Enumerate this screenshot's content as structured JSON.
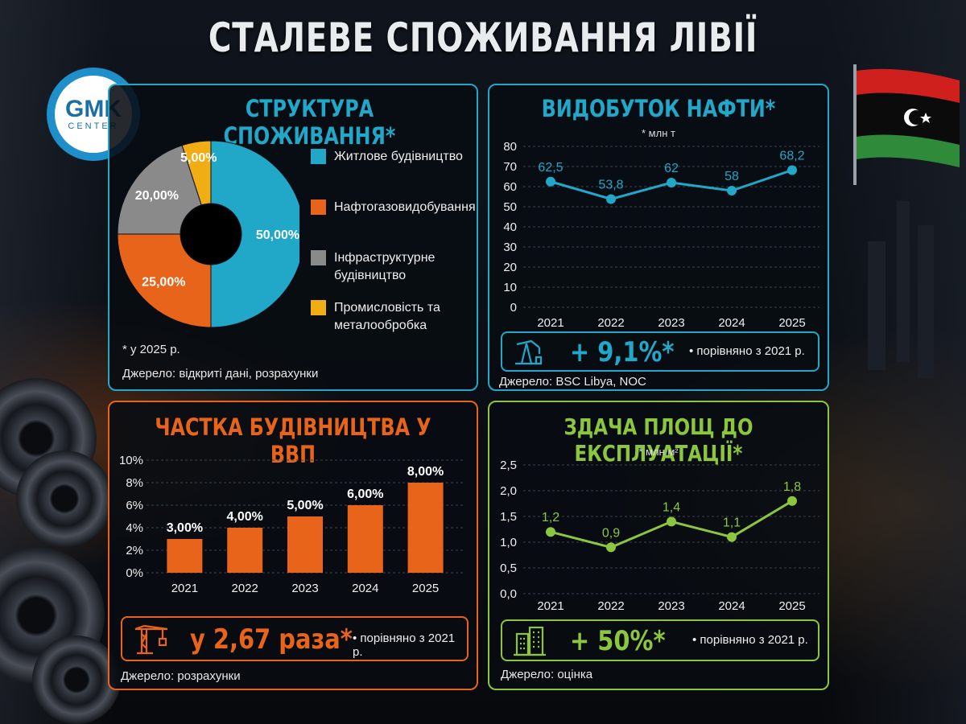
{
  "title": "СТАЛЕВЕ СПОЖИВАННЯ ЛІВІЇ",
  "logo": {
    "main": "GMK",
    "sub": "CENTER"
  },
  "colors": {
    "blue": "#21a8c8",
    "orange": "#e8641a",
    "gray": "#8a8a8a",
    "yellow": "#f0ad14",
    "green": "#8cc63f"
  },
  "structure": {
    "title": "СТРУКТУРА СПОЖИВАННЯ*",
    "footnote": "* у 2025 р.",
    "source": "Джерело: відкриті дані, розрахунки"
  },
  "oil": {
    "title": "ВИДОБУТОК НАФТИ*",
    "unit": "* млн т",
    "callout_value": "+ 9,1%*",
    "callout_note": "• порівняно з 2021 р.",
    "source": "Джерело: BSC Libya, NOC"
  },
  "construction": {
    "title": "ЧАСТКА БУДІВНИЦТВА У ВВП",
    "callout_value": "у 2,67 раза*",
    "callout_note": "• порівняно з 2021 р.",
    "source": "Джерело: розрахунки"
  },
  "area": {
    "title": "ЗДАЧА ПЛОЩ ДО ЕКСПЛУАТАЦІЇ*",
    "unit": "* млн м²",
    "callout_value": "+ 50%*",
    "callout_note": "• порівняно з 2021 р.",
    "source": "Джерело: оцінка"
  },
  "chart_data": [
    {
      "type": "pie",
      "title": "СТРУКТУРА СПОЖИВАННЯ*",
      "categories": [
        "Житлове будівництво",
        "Нафтогазовидобування",
        "Інфраструктурне будівництво",
        "Промисловість та металообробка"
      ],
      "values": [
        50,
        25,
        20,
        5
      ],
      "labels": [
        "50,00%",
        "25,00%",
        "20,00%",
        "5,00%"
      ],
      "colors": [
        "#21a8c8",
        "#e8641a",
        "#8a8a8a",
        "#f0ad14"
      ],
      "donut": true,
      "legend": "right"
    },
    {
      "type": "line",
      "title": "ВИДОБУТОК НАФТИ*",
      "ylabel": "* млн т",
      "x": [
        "2021",
        "2022",
        "2023",
        "2024",
        "2025"
      ],
      "values": [
        62.5,
        53.8,
        62,
        58,
        68.2
      ],
      "labels": [
        "62,5",
        "53,8",
        "62",
        "58",
        "68,2"
      ],
      "ylim": [
        0,
        80
      ],
      "yticks": [
        "0",
        "10",
        "20",
        "30",
        "40",
        "50",
        "60",
        "70",
        "80"
      ],
      "color": "#21a8c8",
      "grid": true
    },
    {
      "type": "bar",
      "title": "ЧАСТКА БУДІВНИЦТВА У ВВП",
      "categories": [
        "2021",
        "2022",
        "2023",
        "2024",
        "2025"
      ],
      "values": [
        3,
        4,
        5,
        6,
        8
      ],
      "labels": [
        "3,00%",
        "4,00%",
        "5,00%",
        "6,00%",
        "8,00%"
      ],
      "ylim": [
        0,
        10
      ],
      "yticks": [
        "0%",
        "2%",
        "4%",
        "6%",
        "8%",
        "10%"
      ],
      "color": "#e8641a",
      "grid": true
    },
    {
      "type": "line",
      "title": "ЗДАЧА ПЛОЩ ДО ЕКСПЛУАТАЦІЇ*",
      "ylabel": "* млн м²",
      "x": [
        "2021",
        "2022",
        "2023",
        "2024",
        "2025"
      ],
      "values": [
        1.2,
        0.9,
        1.4,
        1.1,
        1.8
      ],
      "labels": [
        "1,2",
        "0,9",
        "1,4",
        "1,1",
        "1,8"
      ],
      "ylim": [
        0,
        2.5
      ],
      "yticks": [
        "0,0",
        "0,5",
        "1,0",
        "1,5",
        "2,0",
        "2,5"
      ],
      "color": "#8cc63f",
      "grid": true
    }
  ]
}
